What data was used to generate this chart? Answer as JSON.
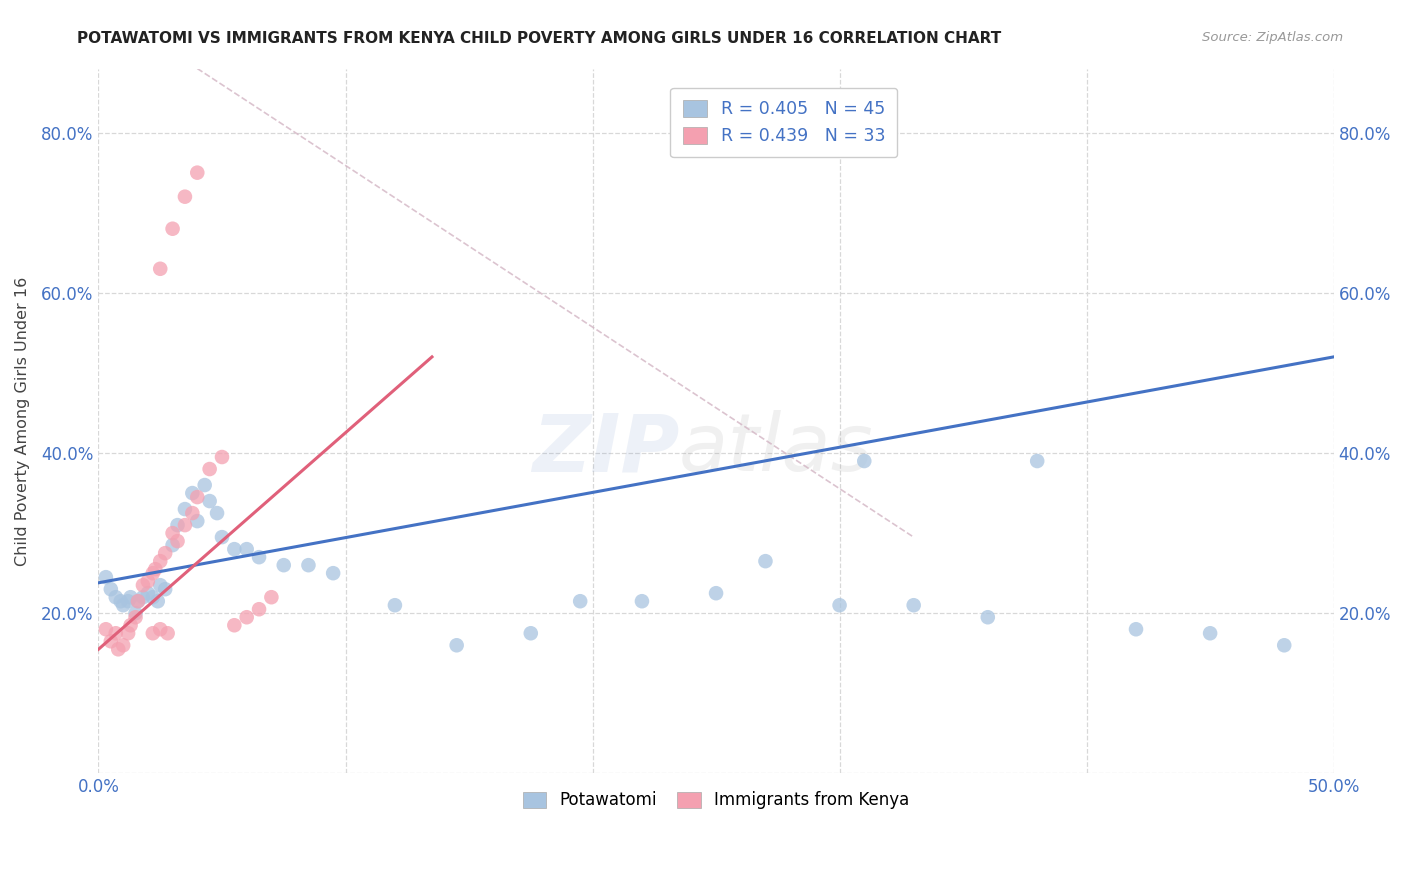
{
  "title": "POTAWATOMI VS IMMIGRANTS FROM KENYA CHILD POVERTY AMONG GIRLS UNDER 16 CORRELATION CHART",
  "source": "Source: ZipAtlas.com",
  "ylabel": "Child Poverty Among Girls Under 16",
  "xlim": [
    0.0,
    0.5
  ],
  "ylim": [
    0.0,
    0.88
  ],
  "blue_R": 0.405,
  "blue_N": 45,
  "pink_R": 0.439,
  "pink_N": 33,
  "blue_color": "#a8c4e0",
  "pink_color": "#f4a0b0",
  "blue_line_color": "#4472c4",
  "pink_line_color": "#e0607a",
  "background_color": "#ffffff",
  "grid_color": "#d8d8d8",
  "watermark_color": "#7090c8",
  "blue_scatter_x": [
    0.003,
    0.005,
    0.007,
    0.009,
    0.01,
    0.012,
    0.013,
    0.015,
    0.016,
    0.018,
    0.02,
    0.022,
    0.024,
    0.025,
    0.027,
    0.03,
    0.032,
    0.035,
    0.038,
    0.04,
    0.043,
    0.045,
    0.048,
    0.05,
    0.055,
    0.06,
    0.065,
    0.075,
    0.085,
    0.095,
    0.12,
    0.145,
    0.175,
    0.195,
    0.22,
    0.25,
    0.27,
    0.3,
    0.33,
    0.36,
    0.31,
    0.38,
    0.42,
    0.45,
    0.48
  ],
  "blue_scatter_y": [
    0.245,
    0.23,
    0.22,
    0.215,
    0.21,
    0.215,
    0.22,
    0.2,
    0.215,
    0.22,
    0.225,
    0.22,
    0.215,
    0.235,
    0.23,
    0.285,
    0.31,
    0.33,
    0.35,
    0.315,
    0.36,
    0.34,
    0.325,
    0.295,
    0.28,
    0.28,
    0.27,
    0.26,
    0.26,
    0.25,
    0.21,
    0.16,
    0.175,
    0.215,
    0.215,
    0.225,
    0.265,
    0.21,
    0.21,
    0.195,
    0.39,
    0.39,
    0.18,
    0.175,
    0.16
  ],
  "pink_scatter_x": [
    0.003,
    0.005,
    0.007,
    0.008,
    0.01,
    0.012,
    0.013,
    0.015,
    0.016,
    0.018,
    0.02,
    0.022,
    0.023,
    0.025,
    0.027,
    0.03,
    0.032,
    0.035,
    0.038,
    0.04,
    0.045,
    0.05,
    0.055,
    0.06,
    0.065,
    0.07,
    0.025,
    0.03,
    0.035,
    0.04,
    0.022,
    0.025,
    0.028
  ],
  "pink_scatter_y": [
    0.18,
    0.165,
    0.175,
    0.155,
    0.16,
    0.175,
    0.185,
    0.195,
    0.215,
    0.235,
    0.24,
    0.25,
    0.255,
    0.265,
    0.275,
    0.3,
    0.29,
    0.31,
    0.325,
    0.345,
    0.38,
    0.395,
    0.185,
    0.195,
    0.205,
    0.22,
    0.63,
    0.68,
    0.72,
    0.75,
    0.175,
    0.18,
    0.175
  ],
  "blue_line_x": [
    0.0,
    0.5
  ],
  "blue_line_y": [
    0.238,
    0.52
  ],
  "pink_line_x": [
    0.0,
    0.135
  ],
  "pink_line_y": [
    0.155,
    0.52
  ],
  "dash_line_x": [
    0.04,
    0.33
  ],
  "dash_line_y": [
    0.88,
    0.295
  ]
}
